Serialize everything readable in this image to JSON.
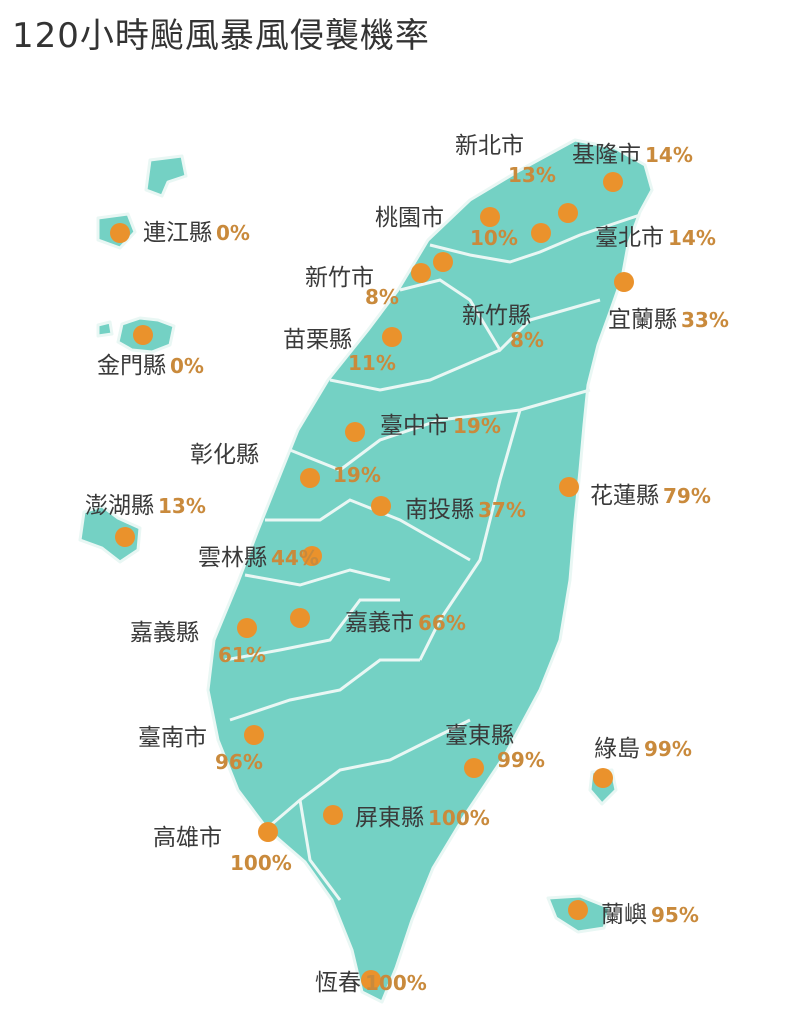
{
  "title": "120小時颱風暴風侵襲機率",
  "colors": {
    "land": "#74d1c4",
    "border": "#e9f7f4",
    "dot": "#ea922c",
    "percent": "#c98a3c",
    "text": "#3a3a3a"
  },
  "regions": [
    {
      "name": "基隆市",
      "pct": "14%"
    },
    {
      "name": "新北市",
      "pct": "13%"
    },
    {
      "name": "桃園市",
      "pct": "10%"
    },
    {
      "name": "臺北市",
      "pct": "14%"
    },
    {
      "name": "新竹市",
      "pct": "8%"
    },
    {
      "name": "新竹縣",
      "pct": "8%"
    },
    {
      "name": "宜蘭縣",
      "pct": "33%"
    },
    {
      "name": "苗栗縣",
      "pct": "11%"
    },
    {
      "name": "連江縣",
      "pct": "0%"
    },
    {
      "name": "金門縣",
      "pct": "0%"
    },
    {
      "name": "臺中市",
      "pct": "19%"
    },
    {
      "name": "彰化縣",
      "pct": "19%"
    },
    {
      "name": "南投縣",
      "pct": "37%"
    },
    {
      "name": "花蓮縣",
      "pct": "79%"
    },
    {
      "name": "澎湖縣",
      "pct": "13%"
    },
    {
      "name": "雲林縣",
      "pct": "44%"
    },
    {
      "name": "嘉義縣",
      "pct": "61%"
    },
    {
      "name": "嘉義市",
      "pct": "66%"
    },
    {
      "name": "臺南市",
      "pct": "96%"
    },
    {
      "name": "臺東縣",
      "pct": "99%"
    },
    {
      "name": "綠島",
      "pct": "99%"
    },
    {
      "name": "高雄市",
      "pct": "100%"
    },
    {
      "name": "屏東縣",
      "pct": "100%"
    },
    {
      "name": "蘭嶼",
      "pct": "95%"
    },
    {
      "name": "恆春",
      "pct": "100%"
    }
  ]
}
